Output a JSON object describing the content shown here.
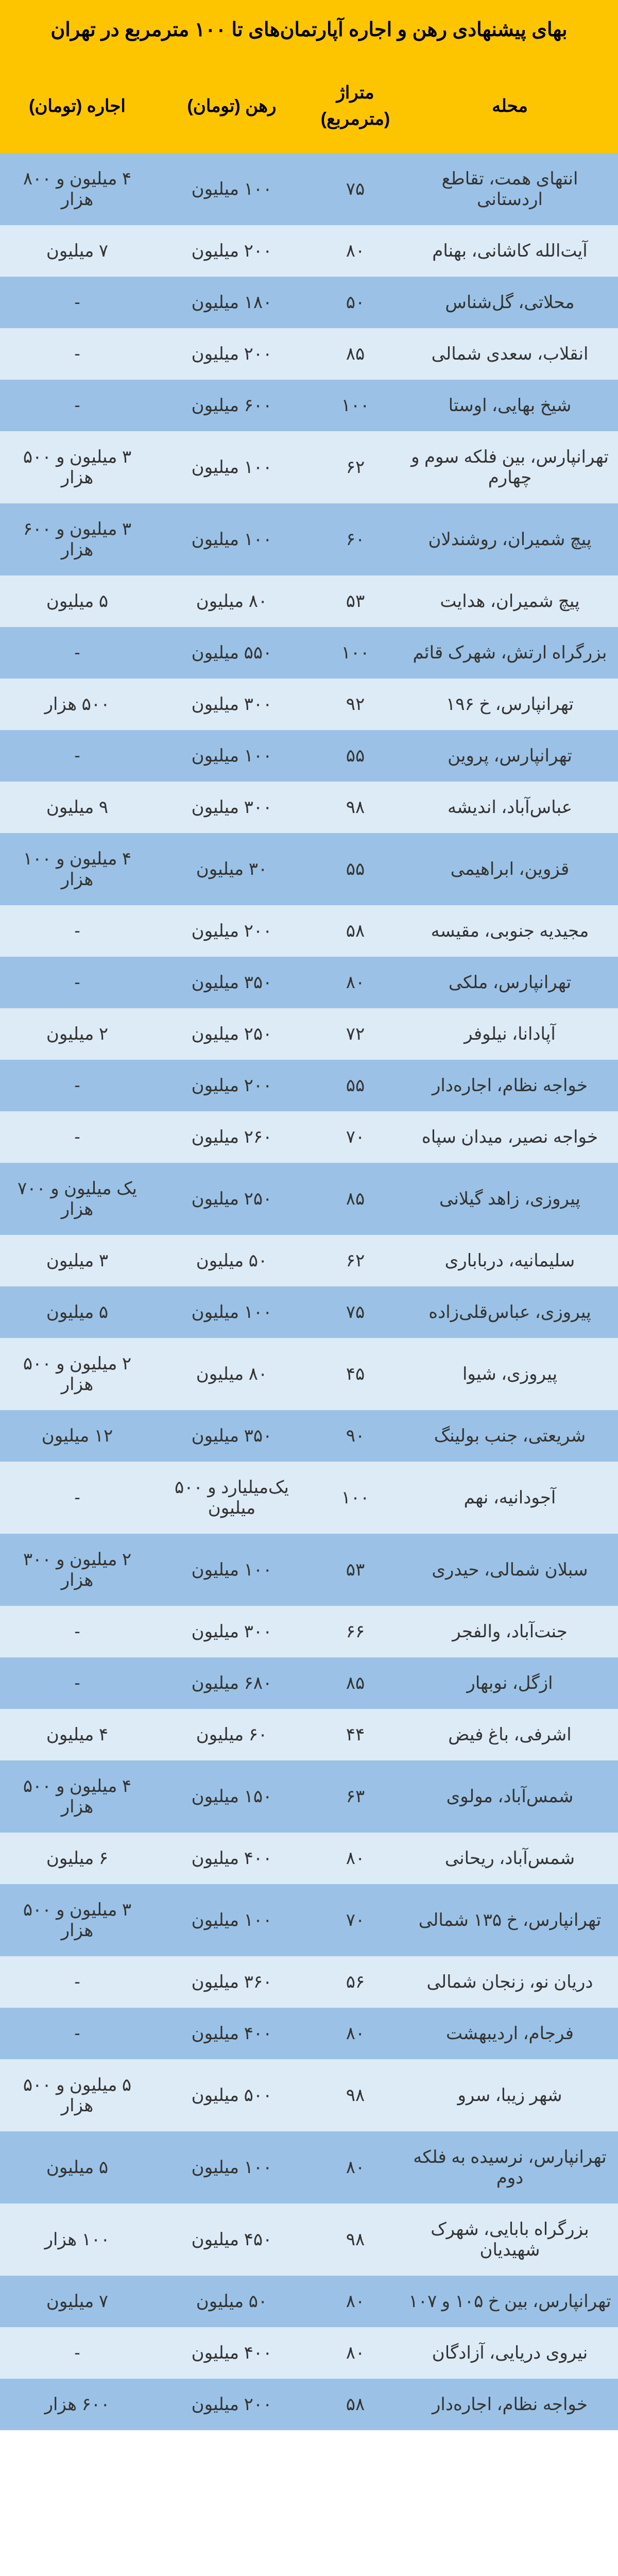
{
  "title": "بهای پیشنهادی رهن و اجاره آپارتمان‌های تا ۱۰۰ مترمربع در تهران",
  "colors": {
    "header_bg": "#fdc500",
    "row_odd": "#9bc2e6",
    "row_even": "#ddebf7",
    "text": "#333333",
    "header_text": "#000000"
  },
  "columns": {
    "location": "محله",
    "area": "متراژ (مترمربع)",
    "deposit": "رهن (تومان)",
    "rent": "اجاره (تومان)"
  },
  "rows": [
    {
      "location": "انتهای همت، تقاطع اردستانی",
      "area": "۷۵",
      "deposit": "۱۰۰ میلیون",
      "rent": "۴ میلیون و ۸۰۰ هزار"
    },
    {
      "location": "آیت‌الله کاشانی، بهنام",
      "area": "۸۰",
      "deposit": "۲۰۰ میلیون",
      "rent": "۷ میلیون"
    },
    {
      "location": "محلاتی، گل‌شناس",
      "area": "۵۰",
      "deposit": "۱۸۰ میلیون",
      "rent": "-"
    },
    {
      "location": "انقلاب، سعدی شمالی",
      "area": "۸۵",
      "deposit": "۲۰۰ میلیون",
      "rent": "-"
    },
    {
      "location": "شیخ بهایی، اوستا",
      "area": "۱۰۰",
      "deposit": "۶۰۰ میلیون",
      "rent": "-"
    },
    {
      "location": "تهرانپارس، بین فلکه سوم و چهارم",
      "area": "۶۲",
      "deposit": "۱۰۰ میلیون",
      "rent": "۳ میلیون و ۵۰۰ هزار"
    },
    {
      "location": "پیچ شمیران، روشندلان",
      "area": "۶۰",
      "deposit": "۱۰۰ میلیون",
      "rent": "۳ میلیون و ۶۰۰ هزار"
    },
    {
      "location": "پیچ شمیران، هدایت",
      "area": "۵۳",
      "deposit": "۸۰ میلیون",
      "rent": "۵ میلیون"
    },
    {
      "location": "بزرگراه ارتش، شهرک قائم",
      "area": "۱۰۰",
      "deposit": "۵۵۰ میلیون",
      "rent": "-"
    },
    {
      "location": "تهرانپارس، خ ۱۹۶",
      "area": "۹۲",
      "deposit": "۳۰۰ میلیون",
      "rent": "۵۰۰ هزار"
    },
    {
      "location": "تهرانپارس، پروین",
      "area": "۵۵",
      "deposit": "۱۰۰ میلیون",
      "rent": "-"
    },
    {
      "location": "عباس‌آباد، اندیشه",
      "area": "۹۸",
      "deposit": "۳۰۰ میلیون",
      "rent": "۹ میلیون"
    },
    {
      "location": "قزوین، ابراهیمی",
      "area": "۵۵",
      "deposit": "۳۰ میلیون",
      "rent": "۴ میلیون و ۱۰۰ هزار"
    },
    {
      "location": "مجیدیه جنوبی، مقیسه",
      "area": "۵۸",
      "deposit": "۲۰۰ میلیون",
      "rent": "-"
    },
    {
      "location": "تهرانپارس، ملکی",
      "area": "۸۰",
      "deposit": "۳۵۰ میلیون",
      "rent": "-"
    },
    {
      "location": "آپادانا، نیلوفر",
      "area": "۷۲",
      "deposit": "۲۵۰ میلیون",
      "rent": "۲ میلیون"
    },
    {
      "location": "خواجه نظام، اجاره‌دار",
      "area": "۵۵",
      "deposit": "۲۰۰ میلیون",
      "rent": "-"
    },
    {
      "location": "خواجه نصیر، میدان سپاه",
      "area": "۷۰",
      "deposit": "۲۶۰ میلیون",
      "rent": "-"
    },
    {
      "location": "پیروزی، زاهد گیلانی",
      "area": "۸۵",
      "deposit": "۲۵۰ میلیون",
      "rent": "یک میلیون و ۷۰۰ هزار"
    },
    {
      "location": "سلیمانیه، درباباری",
      "area": "۶۲",
      "deposit": "۵۰ میلیون",
      "rent": "۳ میلیون"
    },
    {
      "location": "پیروزی، عباس‌قلی‌زاده",
      "area": "۷۵",
      "deposit": "۱۰۰ میلیون",
      "rent": "۵ میلیون"
    },
    {
      "location": "پیروزی، شیوا",
      "area": "۴۵",
      "deposit": "۸۰ میلیون",
      "rent": "۲ میلیون و ۵۰۰ هزار"
    },
    {
      "location": "شریعتی، جنب بولینگ",
      "area": "۹۰",
      "deposit": "۳۵۰ میلیون",
      "rent": "۱۲ میلیون"
    },
    {
      "location": "آجودانیه، نهم",
      "area": "۱۰۰",
      "deposit": "یک‌میلیارد و ۵۰۰ میلیون",
      "rent": "-"
    },
    {
      "location": "سبلان شمالی، حیدری",
      "area": "۵۳",
      "deposit": "۱۰۰ میلیون",
      "rent": "۲ میلیون و ۳۰۰ هزار"
    },
    {
      "location": "جنت‌آباد، والفجر",
      "area": "۶۶",
      "deposit": "۳۰۰ میلیون",
      "rent": "-"
    },
    {
      "location": "ازگل، نوبهار",
      "area": "۸۵",
      "deposit": "۶۸۰ میلیون",
      "rent": "-"
    },
    {
      "location": "اشرفی، باغ فیض",
      "area": "۴۴",
      "deposit": "۶۰ میلیون",
      "rent": "۴ میلیون"
    },
    {
      "location": "شمس‌آباد، مولوی",
      "area": "۶۳",
      "deposit": "۱۵۰ میلیون",
      "rent": "۴ میلیون و ۵۰۰ هزار"
    },
    {
      "location": "شمس‌آباد، ریحانی",
      "area": "۸۰",
      "deposit": "۴۰۰ میلیون",
      "rent": "۶ میلیون"
    },
    {
      "location": "تهرانپارس، خ ۱۳۵ شمالی",
      "area": "۷۰",
      "deposit": "۱۰۰ میلیون",
      "rent": "۳ میلیون و ۵۰۰ هزار"
    },
    {
      "location": "دریان نو، زنجان شمالی",
      "area": "۵۶",
      "deposit": "۳۶۰ میلیون",
      "rent": "-"
    },
    {
      "location": "فرجام، اردیبهشت",
      "area": "۸۰",
      "deposit": "۴۰۰ میلیون",
      "rent": "-"
    },
    {
      "location": "شهر زیبا، سرو",
      "area": "۹۸",
      "deposit": "۵۰۰ میلیون",
      "rent": "۵ میلیون و ۵۰۰ هزار"
    },
    {
      "location": "تهرانپارس، نرسیده به فلکه دوم",
      "area": "۸۰",
      "deposit": "۱۰۰ میلیون",
      "rent": "۵ میلیون"
    },
    {
      "location": "بزرگراه بابایی، شهرک شهیدیان",
      "area": "۹۸",
      "deposit": "۴۵۰ میلیون",
      "rent": "۱۰۰ هزار"
    },
    {
      "location": "تهرانپارس، بین خ ۱۰۵ و ۱۰۷",
      "area": "۸۰",
      "deposit": "۵۰ میلیون",
      "rent": "۷ میلیون"
    },
    {
      "location": "نیروی دریایی، آزادگان",
      "area": "۸۰",
      "deposit": "۴۰۰ میلیون",
      "rent": "-"
    },
    {
      "location": "خواجه نظام، اجاره‌دار",
      "area": "۵۸",
      "deposit": "۲۰۰ میلیون",
      "rent": "۶۰۰ هزار"
    }
  ]
}
